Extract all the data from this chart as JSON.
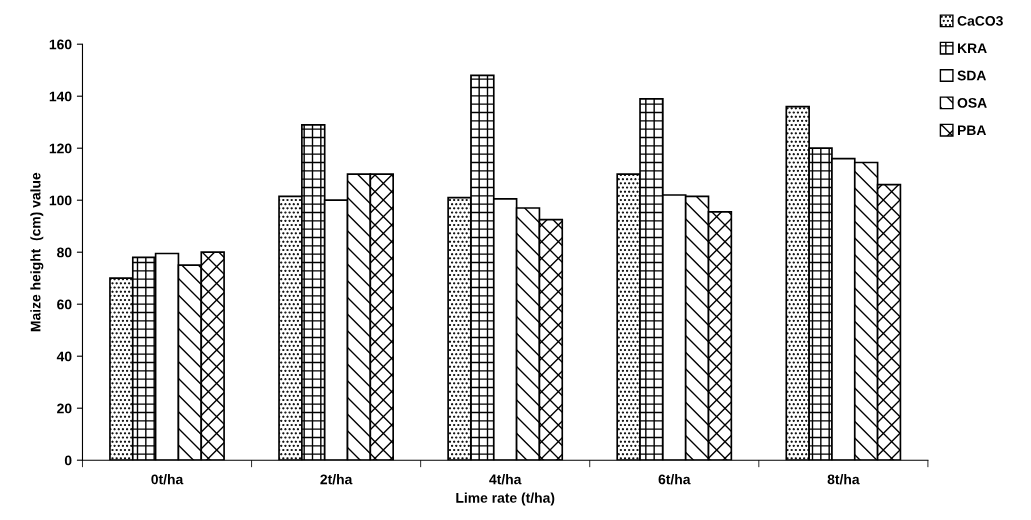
{
  "chart_data": {
    "type": "bar",
    "xlabel": "Lime rate (t/ha)",
    "ylabel": "Maize height  (cm) value",
    "categories": [
      "0t/ha",
      "2t/ha",
      "4t/ha",
      "6t/ha",
      "8t/ha"
    ],
    "series": [
      {
        "name": "CaCO3",
        "color": "#000000",
        "values": [
          70,
          101.5,
          101,
          110,
          136
        ]
      },
      {
        "name": "KRA",
        "color": "#000000",
        "values": [
          78,
          129,
          148,
          139,
          120
        ]
      },
      {
        "name": "SDA",
        "color": "#000000",
        "values": [
          79.5,
          100,
          100.5,
          102,
          116
        ]
      },
      {
        "name": "OSA",
        "color": "#000000",
        "values": [
          75,
          110,
          97,
          101.5,
          114.5
        ]
      },
      {
        "name": "PBA",
        "color": "#000000",
        "values": [
          80,
          110,
          92.5,
          95.5,
          106
        ]
      }
    ],
    "ylim": [
      0,
      160
    ],
    "yticks": [
      0,
      20,
      40,
      60,
      80,
      100,
      120,
      140,
      160
    ],
    "grid": false,
    "legend": "top right"
  }
}
